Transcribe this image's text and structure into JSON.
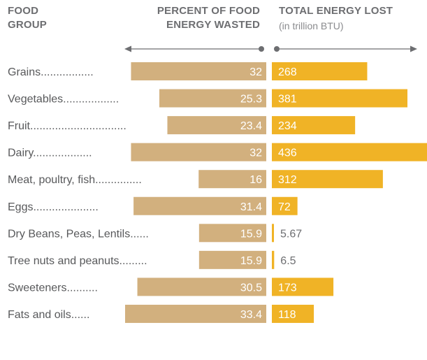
{
  "header": {
    "group_line1": "FOOD",
    "group_line2": "GROUP",
    "percent_line1": "PERCENT OF FOOD",
    "percent_line2": "ENERGY WASTED",
    "energy_line1": "TOTAL ENERGY LOST",
    "energy_sub": "(in trillion BTU)"
  },
  "colors": {
    "percent_bar": "#d2b07e",
    "energy_bar": "#f0b326",
    "label_text": "#58595b",
    "arrow": "#6d6e71"
  },
  "chart_data": {
    "type": "bar",
    "categories": [
      "Grains",
      "Vegetables",
      "Fruit",
      "Dairy",
      "Meat, poultry, fish",
      "Eggs",
      "Dry Beans, Peas, Lentils",
      "Tree nuts and peanuts",
      "Sweeteners",
      "Fats and oils"
    ],
    "label_leaders": [
      "Grains.................",
      "Vegetables..................",
      "Fruit...............................",
      "Dairy...................",
      "Meat, poultry, fish...............",
      "Eggs.....................",
      "Dry Beans, Peas, Lentils......",
      "Tree nuts and peanuts.........",
      "Sweeteners..........",
      "Fats and oils......"
    ],
    "series": [
      {
        "name": "PERCENT OF FOOD ENERGY WASTED",
        "values": [
          32,
          25.3,
          23.4,
          32,
          16,
          31.4,
          15.9,
          15.9,
          30.5,
          33.4
        ],
        "direction": "left"
      },
      {
        "name": "TOTAL ENERGY LOST",
        "values": [
          268,
          381,
          234,
          436,
          312,
          72,
          5.67,
          6.5,
          173,
          118
        ],
        "direction": "right"
      }
    ],
    "value_labels": {
      "percent": [
        "32",
        "25.3",
        "23.4",
        "32",
        "16",
        "31.4",
        "15.9",
        "15.9",
        "30.5",
        "33.4"
      ],
      "energy": [
        "268",
        "381",
        "234",
        "436",
        "312",
        "72",
        "5.67",
        "6.5",
        "173",
        "118"
      ]
    }
  }
}
